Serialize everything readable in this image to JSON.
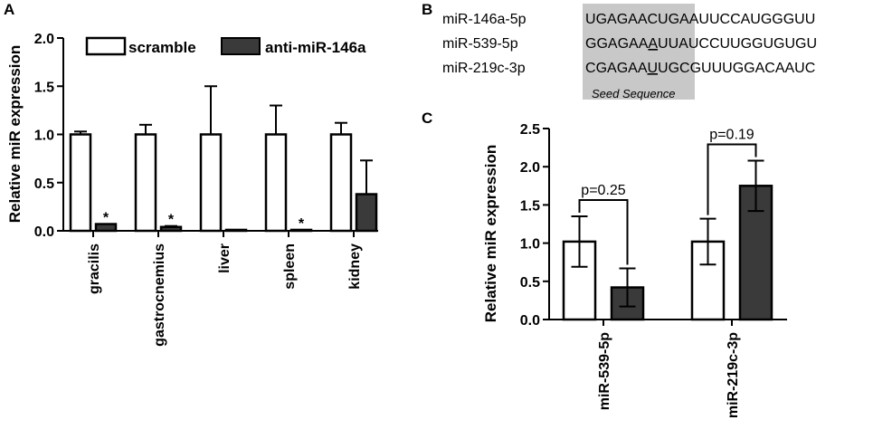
{
  "panel_a": {
    "letter": "A",
    "chart_data": {
      "type": "bar",
      "ylabel": "Relative miR expression",
      "ylim": [
        0,
        2.0
      ],
      "yticks": [
        "0.0",
        "0.5",
        "1.0",
        "1.5",
        "2.0"
      ],
      "categories": [
        "gracilis",
        "gastrocnemius",
        "liver",
        "spleen",
        "kidney"
      ],
      "series": [
        {
          "name": "scramble",
          "values": [
            1.0,
            1.0,
            1.0,
            1.0,
            1.0
          ],
          "errors": [
            0.03,
            0.1,
            0.5,
            0.3,
            0.12
          ],
          "color": "#ffffff"
        },
        {
          "name": "anti-miR-146a",
          "values": [
            0.07,
            0.04,
            0.01,
            0.01,
            0.38
          ],
          "errors": [
            0,
            0.01,
            0,
            0,
            0.35
          ],
          "color": "#3a3a3a"
        }
      ],
      "significance": [
        "*",
        "*",
        "",
        "*",
        ""
      ],
      "legend_position": "top"
    }
  },
  "panel_b": {
    "letter": "B",
    "rows": [
      {
        "name": "miR-146a-5p",
        "seed": "UGAGAACU",
        "rest": "GAAUUCCAUGGGUU",
        "underline_index": -1
      },
      {
        "name": "miR-539-5p",
        "seed": "GGAGAAAU",
        "rest": "UAUCCUUGGUGUGU",
        "underline_index": 6
      },
      {
        "name": "miR-219c-3p",
        "seed": "CGAGAAUU",
        "rest": "GCGUUUGGACAAUC",
        "underline_index": 6
      }
    ],
    "seed_label": "Seed Sequence",
    "seed_box_color": "#c8c8c8"
  },
  "panel_c": {
    "letter": "C",
    "chart_data": {
      "type": "bar",
      "ylabel": "Relative miR expression",
      "ylim": [
        0,
        2.5
      ],
      "yticks": [
        "0.0",
        "0.5",
        "1.0",
        "1.5",
        "2.0",
        "2.5"
      ],
      "categories": [
        "miR-539-5p",
        "miR-219c-3p"
      ],
      "series": [
        {
          "name": "scramble",
          "values": [
            1.02,
            1.02
          ],
          "errors": [
            0.33,
            0.3
          ],
          "color": "#ffffff"
        },
        {
          "name": "anti-miR-146a",
          "values": [
            0.42,
            1.75
          ],
          "errors": [
            0.25,
            0.33
          ],
          "color": "#3a3a3a"
        }
      ],
      "annotations": [
        "p=0.25",
        "p=0.19"
      ]
    }
  }
}
